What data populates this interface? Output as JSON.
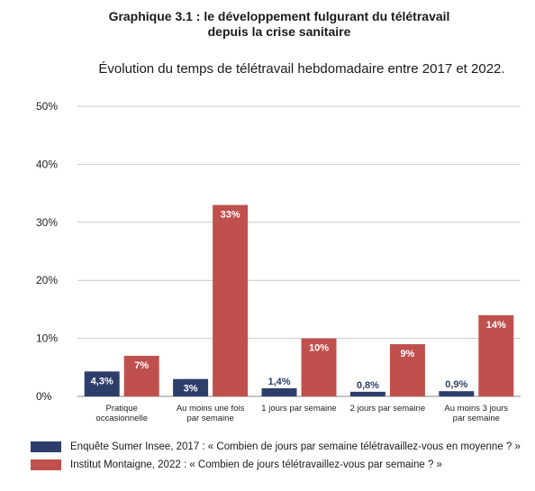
{
  "title_line1": "Graphique 3.1 : le développement fulgurant du télétravail",
  "title_line2": "depuis la crise sanitaire",
  "subtitle": "Évolution du temps de télétravail hebdomadaire entre 2017 et 2022.",
  "colors": {
    "series_2017": "#2e3e6b",
    "series_2022": "#c0504d",
    "grid": "#c8c8c8"
  },
  "chart_data": {
    "type": "bar",
    "ylim": [
      0,
      50
    ],
    "y_ticks": [
      0,
      10,
      20,
      30,
      40,
      50
    ],
    "y_tick_labels": [
      "0%",
      "10%",
      "20%",
      "30%",
      "40%",
      "50%"
    ],
    "categories": [
      [
        "Pratique",
        "occasionnelle"
      ],
      [
        "Au moins une fois",
        "par semaine"
      ],
      [
        "1 jours par semaine"
      ],
      [
        "2 jours par semaine"
      ],
      [
        "Au moins 3 jours",
        "par semaine"
      ]
    ],
    "series": [
      {
        "name": "Enquête Sumer Insee, 2017 : « Combien de jours par semaine télétravaillez-vous en moyenne ? »",
        "values": [
          4.3,
          3,
          1.4,
          0.8,
          0.9
        ],
        "labels": [
          "4,3%",
          "3%",
          "1,4%",
          "0,8%",
          "0,9%"
        ]
      },
      {
        "name": "Institut Montaigne, 2022 : « Combien de jours télétravaillez-vous par semaine ? »",
        "values": [
          7,
          33,
          10,
          9,
          14
        ],
        "labels": [
          "7%",
          "33%",
          "10%",
          "9%",
          "14%"
        ]
      }
    ],
    "grid": true,
    "legend_position": "bottom-left"
  }
}
